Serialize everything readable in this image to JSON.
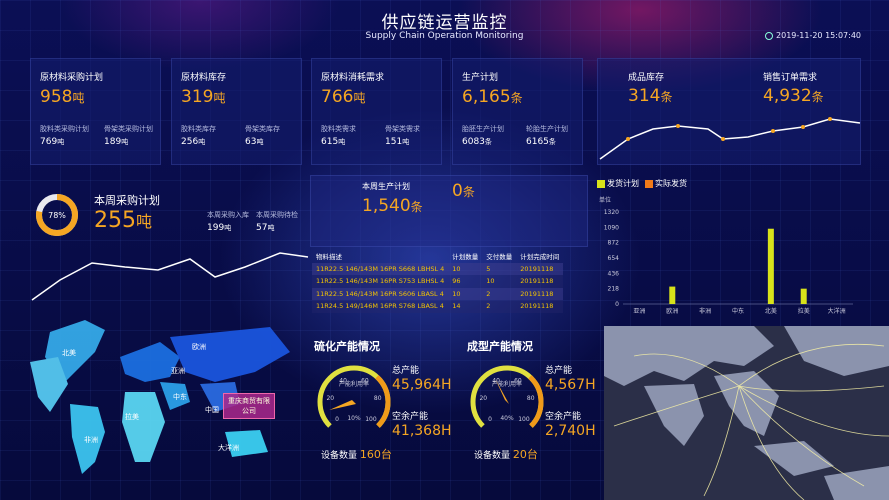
{
  "header": {
    "title": "供应链运营监控",
    "subtitle": "Supply Chain Operation Monitoring",
    "datetime": "2019-11-20 15:07:40"
  },
  "cards": [
    {
      "label": "原材料采购计划",
      "value": "958",
      "unit": "吨",
      "subs": [
        {
          "label": "胶料类采购计划",
          "value": "769",
          "unit": "吨"
        },
        {
          "label": "骨架类采购计划",
          "value": "189",
          "unit": "吨"
        }
      ]
    },
    {
      "label": "原材料库存",
      "value": "319",
      "unit": "吨",
      "subs": [
        {
          "label": "胶料类库存",
          "value": "256",
          "unit": "吨"
        },
        {
          "label": "骨架类库存",
          "value": "63",
          "unit": "吨"
        }
      ]
    },
    {
      "label": "原材料消耗需求",
      "value": "766",
      "unit": "吨",
      "subs": [
        {
          "label": "胶料类需求",
          "value": "615",
          "unit": "吨"
        },
        {
          "label": "骨架类需求",
          "value": "151",
          "unit": "吨"
        }
      ]
    },
    {
      "label": "生产计划",
      "value": "6,165",
      "unit": "条",
      "subs": [
        {
          "label": "胎胚生产计划",
          "value": "6083",
          "unit": "条"
        },
        {
          "label": "轮胎生产计划",
          "value": "6165",
          "unit": "条"
        }
      ]
    }
  ],
  "stock": {
    "product_label": "成品库存",
    "product_value": "314",
    "product_unit": "条",
    "order_label": "销售订单需求",
    "order_value": "4,932",
    "order_unit": "条"
  },
  "weekly_purchase": {
    "label": "本周采购计划",
    "value": "255",
    "unit": "吨",
    "percent": 78,
    "percent_text": "78%",
    "in_label": "本周采购入库",
    "in_value": "199",
    "in_unit": "吨",
    "wait_label": "本周采购待检",
    "wait_value": "57",
    "wait_unit": "吨"
  },
  "weekly_production": {
    "label": "本周生产计划",
    "value": "1,540",
    "unit": "条",
    "right_value": "0",
    "right_unit": "条"
  },
  "materials_table": {
    "headers": [
      "物料描述",
      "计划数量",
      "交付数量",
      "计划完成时间"
    ],
    "rows": [
      [
        "11R22.5 146/143M 16PR S668 LBHSL 4",
        "10",
        "5",
        "20191118"
      ],
      [
        "11R22.5 146/143M 16PR S753 LBHSL 4",
        "96",
        "10",
        "20191118"
      ],
      [
        "11R22.5 146/143M 16PR S606 LBASL 4",
        "10",
        "2",
        "20191118"
      ],
      [
        "11R24.5 149/146M 16PR S768 LBASL 4",
        "14",
        "2",
        "20191118"
      ]
    ]
  },
  "shipping_chart": {
    "legend": [
      "发货计划",
      "实际发货"
    ],
    "unit_label": "单位",
    "chart_data": {
      "type": "bar",
      "categories": [
        "亚洲",
        "欧洲",
        "非洲",
        "中东",
        "北美",
        "拉美",
        "大洋洲"
      ],
      "series": [
        {
          "name": "发货计划",
          "values": [
            0,
            250,
            0,
            0,
            1080,
            220,
            0
          ]
        },
        {
          "name": "实际发货",
          "values": [
            0,
            0,
            0,
            0,
            0,
            0,
            0
          ]
        }
      ],
      "yticks": [
        "1320",
        "1090",
        "872",
        "654",
        "436",
        "218",
        "0"
      ],
      "ylim": [
        0,
        1320
      ]
    },
    "colors": {
      "plan": "#d8e21a",
      "actual": "#f07a1a"
    }
  },
  "vulcan": {
    "title": "硫化产能情况",
    "total_label": "总产能",
    "total_value": "45,964H",
    "spare_label": "空余产能",
    "spare_value": "41,368H",
    "device_label": "设备数量",
    "device_value": "160台",
    "dial_label": "产能利用率",
    "percent": 10,
    "percent_text": "10%"
  },
  "molding": {
    "title": "成型产能情况",
    "total_label": "总产能",
    "total_value": "4,567H",
    "spare_label": "空余产能",
    "spare_value": "2,740H",
    "device_label": "设备数量",
    "device_value": "20台",
    "dial_label": "产能利用率",
    "percent": 40,
    "percent_text": "40%"
  },
  "world_map": {
    "labels": [
      "欧洲",
      "北美",
      "中东",
      "亚洲",
      "中国",
      "拉美",
      "非洲",
      "大洋洲"
    ],
    "tooltip": "重庆商贸有限公司"
  },
  "dial_ticks": [
    "0",
    "20",
    "40",
    "60",
    "80",
    "100"
  ]
}
